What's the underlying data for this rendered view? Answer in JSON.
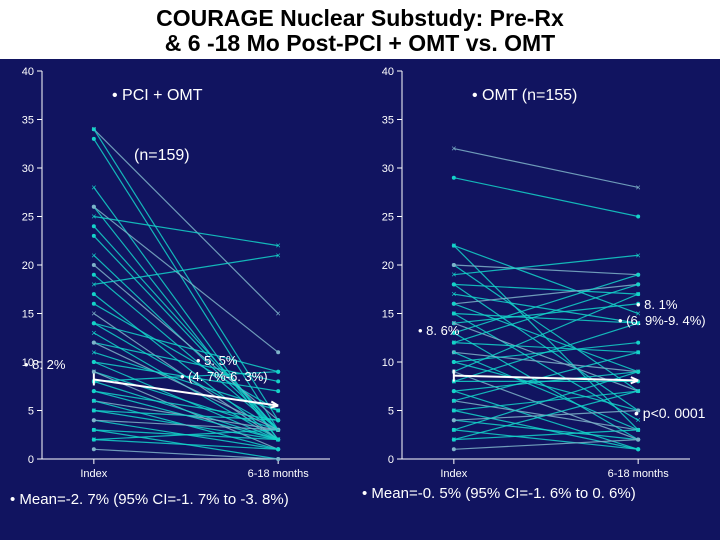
{
  "title_line1": "COURAGE Nuclear Substudy: Pre-Rx",
  "title_line2": "& 6 -18 Mo Post-PCI + OMT vs. OMT",
  "chart": {
    "ylim": [
      0,
      40
    ],
    "ytick_step": 5,
    "x_categories": [
      "Index",
      "6-18 months"
    ],
    "line_color": "#14d3c9",
    "line_color_accent": "#7fb3c9",
    "axis_color": "#ffffff",
    "background_color": "#111460",
    "line_width": 1.2
  },
  "left": {
    "group_label": "• PCI + OMT",
    "n_label": "(n=159)",
    "arrow_start_label": "• 8. 2%",
    "arrow_end_label1": "• 5. 5%",
    "arrow_end_label2": "• (4. 7%-6. 3%)",
    "mean_label": "• Mean=-2. 7% (95% CI=-1. 7% to -3. 8%)",
    "series": [
      [
        34,
        15
      ],
      [
        34,
        4
      ],
      [
        33,
        3
      ],
      [
        28,
        2
      ],
      [
        26,
        2
      ],
      [
        26,
        11
      ],
      [
        25,
        22
      ],
      [
        24,
        3
      ],
      [
        23,
        3
      ],
      [
        21,
        3
      ],
      [
        20,
        4
      ],
      [
        19,
        3
      ],
      [
        18,
        21
      ],
      [
        17,
        2
      ],
      [
        16,
        5
      ],
      [
        15,
        2
      ],
      [
        14,
        9
      ],
      [
        14,
        3
      ],
      [
        13,
        2
      ],
      [
        12,
        8
      ],
      [
        12,
        3
      ],
      [
        11,
        5
      ],
      [
        10,
        2
      ],
      [
        10,
        7
      ],
      [
        9,
        3
      ],
      [
        9,
        1
      ],
      [
        8,
        9
      ],
      [
        8,
        2
      ],
      [
        7,
        4
      ],
      [
        7,
        2
      ],
      [
        6,
        3
      ],
      [
        6,
        1
      ],
      [
        5,
        4
      ],
      [
        5,
        2
      ],
      [
        4,
        1
      ],
      [
        4,
        3
      ],
      [
        3,
        2
      ],
      [
        3,
        0
      ],
      [
        2,
        1
      ],
      [
        2,
        3
      ],
      [
        1,
        0
      ]
    ]
  },
  "right": {
    "group_label": "• OMT (n=155)",
    "arrow_start_label": "• 8. 6%",
    "arrow_end_label1": "• 8. 1%",
    "arrow_end_label2": "• (6. 9%-9. 4%)",
    "p_label": "• p<0. 0001",
    "mean_label": "• Mean=-0. 5% (95% CI=-1. 6% to 0. 6%)",
    "series": [
      [
        32,
        28
      ],
      [
        29,
        25
      ],
      [
        22,
        3
      ],
      [
        22,
        15
      ],
      [
        20,
        7
      ],
      [
        20,
        19
      ],
      [
        19,
        21
      ],
      [
        18,
        5
      ],
      [
        18,
        17
      ],
      [
        17,
        14
      ],
      [
        16,
        18
      ],
      [
        16,
        9
      ],
      [
        15,
        4
      ],
      [
        15,
        14
      ],
      [
        14,
        16
      ],
      [
        14,
        7
      ],
      [
        13,
        19
      ],
      [
        13,
        2
      ],
      [
        12,
        11
      ],
      [
        12,
        18
      ],
      [
        11,
        9
      ],
      [
        11,
        3
      ],
      [
        10,
        12
      ],
      [
        10,
        5
      ],
      [
        9,
        17
      ],
      [
        9,
        2
      ],
      [
        8,
        8
      ],
      [
        8,
        14
      ],
      [
        7,
        1
      ],
      [
        7,
        9
      ],
      [
        6,
        3
      ],
      [
        6,
        11
      ],
      [
        5,
        1
      ],
      [
        5,
        7
      ],
      [
        4,
        2
      ],
      [
        4,
        5
      ],
      [
        3,
        9
      ],
      [
        3,
        1
      ],
      [
        2,
        3
      ],
      [
        2,
        7
      ],
      [
        1,
        2
      ]
    ]
  }
}
